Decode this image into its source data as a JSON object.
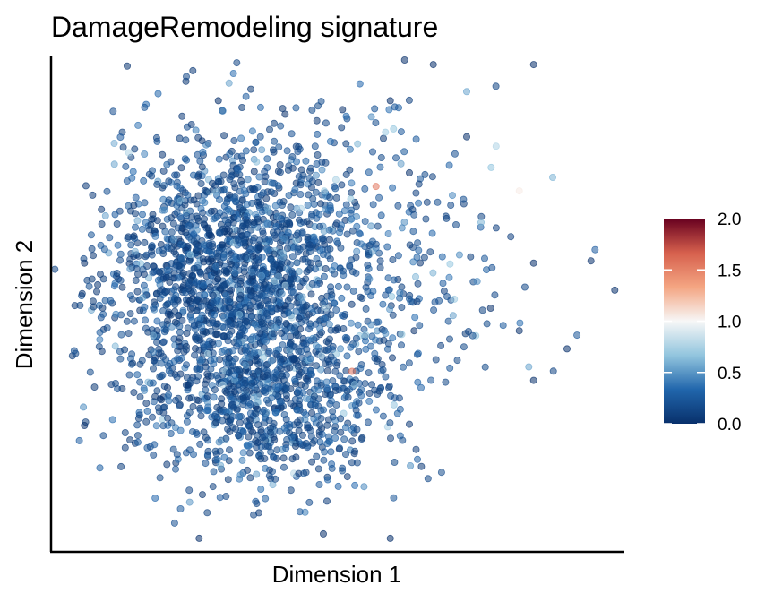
{
  "chart_data": {
    "type": "scatter",
    "title": "DamageRemodeling signature",
    "xlabel": "Dimension 1",
    "ylabel": "Dimension 2",
    "x_ticks_shown": false,
    "y_ticks_shown": false,
    "grid": false,
    "xlim": [
      -4.5,
      7.5
    ],
    "ylim": [
      -6.0,
      5.0
    ],
    "colorbar": {
      "ticks": [
        "0.0",
        "0.5",
        "1.0",
        "1.5",
        "2.0"
      ],
      "range": [
        0.0,
        2.0
      ],
      "colormap": [
        "#08306b",
        "#2166ac",
        "#92c5de",
        "#f7f7f7",
        "#f4a582",
        "#d6604d",
        "#67001f"
      ],
      "placement": "right"
    },
    "point_opacity": 0.55,
    "clusters": [
      {
        "cx": -0.8,
        "cy": 0.0,
        "sx": 1.3,
        "sy": 1.6,
        "n": 1700,
        "mean_value": 0.08
      },
      {
        "cx": 0.1,
        "cy": -2.6,
        "sx": 1.2,
        "sy": 1.0,
        "n": 650,
        "mean_value": 0.1
      },
      {
        "cx": 1.6,
        "cy": 0.4,
        "sx": 1.6,
        "sy": 1.8,
        "n": 420,
        "mean_value": 0.14
      }
    ],
    "points": [
      {
        "x": 5.6,
        "y": 4.8,
        "value": 0.0
      },
      {
        "x": 2.9,
        "y": 4.9,
        "value": 0.0
      },
      {
        "x": 3.5,
        "y": 4.8,
        "value": 0.0
      },
      {
        "x": 4.2,
        "y": 4.2,
        "value": 0.55
      },
      {
        "x": 4.2,
        "y": 3.2,
        "value": 0.0
      },
      {
        "x": 6.0,
        "y": 2.3,
        "value": 0.6
      },
      {
        "x": 5.3,
        "y": 2.0,
        "value": 1.05
      },
      {
        "x": 3.9,
        "y": 1.9,
        "value": 0.45
      },
      {
        "x": 4.5,
        "y": 1.3,
        "value": 0.6
      },
      {
        "x": 5.6,
        "y": 0.4,
        "value": 0.0
      },
      {
        "x": 6.8,
        "y": 0.45,
        "value": 0.0
      },
      {
        "x": 7.3,
        "y": -0.2,
        "value": 0.0
      },
      {
        "x": 4.7,
        "y": -0.6,
        "value": 0.0
      },
      {
        "x": 5.3,
        "y": -1.1,
        "value": 0.0
      },
      {
        "x": 6.3,
        "y": -1.5,
        "value": 0.0
      },
      {
        "x": 5.5,
        "y": -1.9,
        "value": 0.55
      },
      {
        "x": 5.6,
        "y": -2.2,
        "value": 0.0
      },
      {
        "x": 3.1,
        "y": -1.1,
        "value": 0.0
      },
      {
        "x": 2.5,
        "y": 3.3,
        "value": 0.7
      },
      {
        "x": 2.3,
        "y": 2.1,
        "value": 1.55
      },
      {
        "x": 1.8,
        "y": -2.0,
        "value": 1.6
      },
      {
        "x": 3.0,
        "y": 2.4,
        "value": 0.0
      },
      {
        "x": -3.8,
        "y": -3.2,
        "value": 0.0
      },
      {
        "x": -3.8,
        "y": 0.4,
        "value": 0.0
      },
      {
        "x": -1.4,
        "y": -5.7,
        "value": 0.0
      },
      {
        "x": 1.2,
        "y": -5.6,
        "value": 0.0
      },
      {
        "x": 2.6,
        "y": -5.7,
        "value": 0.0
      },
      {
        "x": -1.6,
        "y": -4.9,
        "value": 0.5
      },
      {
        "x": -1.0,
        "y": 4.0,
        "value": 0.0
      },
      {
        "x": 0.4,
        "y": 3.7,
        "value": 0.0
      },
      {
        "x": 1.6,
        "y": 3.8,
        "value": 0.0
      },
      {
        "x": 2.6,
        "y": 4.0,
        "value": 0.0
      }
    ]
  }
}
